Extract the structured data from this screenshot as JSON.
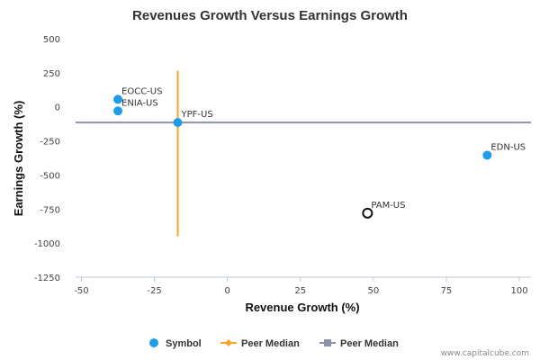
{
  "chart_data": {
    "type": "scatter",
    "title": "Revenues Growth Versus Earnings Growth",
    "xlabel": "Revenue Growth (%)",
    "ylabel": "Earnings Growth (%)",
    "xlim": [
      -52,
      104
    ],
    "ylim": [
      -1250,
      500
    ],
    "xticks": [
      -50,
      -25,
      0,
      25,
      50,
      75,
      100
    ],
    "yticks": [
      500,
      250,
      0,
      -250,
      -500,
      -750,
      -1000,
      -1250
    ],
    "grid": false,
    "legend_position": "bottom",
    "points": [
      {
        "label": "EOCC-US",
        "x": -37.5,
        "y": 55,
        "style": "filled",
        "color": "#1e9de8"
      },
      {
        "label": "ENIA-US",
        "x": -37.5,
        "y": -30,
        "style": "filled",
        "color": "#1e9de8"
      },
      {
        "label": "YPF-US",
        "x": -17,
        "y": -115,
        "style": "filled",
        "color": "#1e9de8"
      },
      {
        "label": "EDN-US",
        "x": 89,
        "y": -355,
        "style": "filled",
        "color": "#1e9de8"
      },
      {
        "label": "PAM-US",
        "x": 48,
        "y": -780,
        "style": "hollow",
        "color": "#111111"
      }
    ],
    "peer_median_revenue": {
      "x": -17,
      "y_from": -950,
      "y_to": 265,
      "color": "#f5a623"
    },
    "peer_median_earnings": {
      "y": -115,
      "color": "#8c93a6"
    },
    "legend": [
      {
        "name": "Symbol",
        "marker": "circle",
        "color": "#1e9de8"
      },
      {
        "name": "Peer Median",
        "marker": "diamond-line",
        "color": "#f5a623"
      },
      {
        "name": "Peer Median",
        "marker": "square-line",
        "color": "#8c93a6"
      }
    ]
  },
  "credit": "www.capitalcube.com"
}
